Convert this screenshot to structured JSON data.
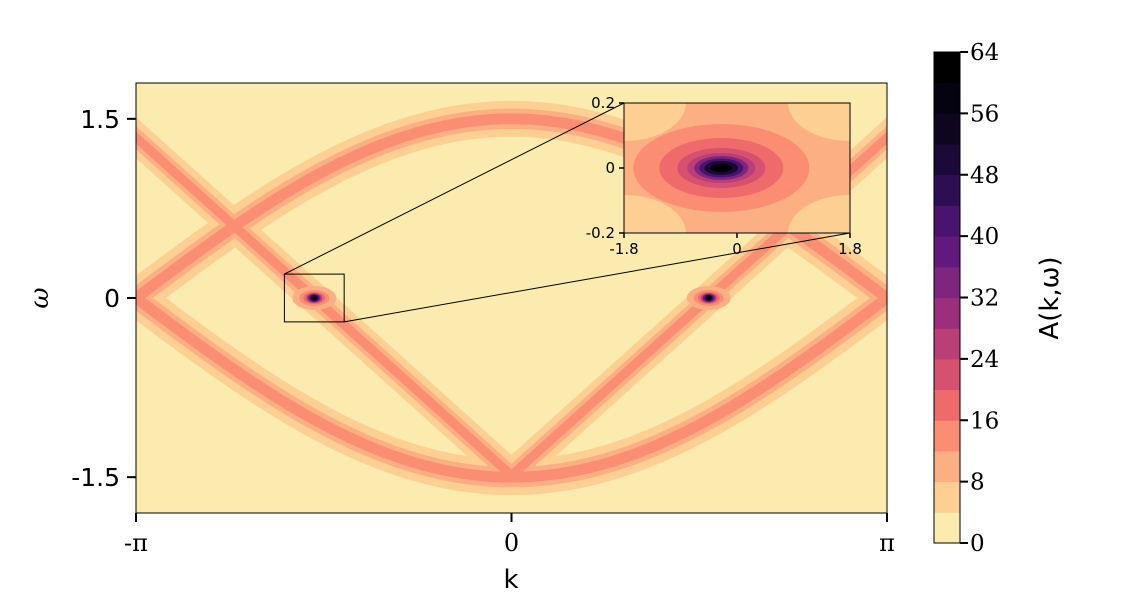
{
  "chart_data": {
    "type": "heatmap",
    "main": {
      "xlabel": "k",
      "ylabel": "ω",
      "xlim": [
        -3.14159,
        3.14159
      ],
      "ylim": [
        -1.8,
        1.8
      ],
      "xticks": [
        {
          "value": -3.14159,
          "label": "-π"
        },
        {
          "value": 0,
          "label": "0"
        },
        {
          "value": 3.14159,
          "label": "π"
        }
      ],
      "yticks": [
        {
          "value": 1.5,
          "label": "1.5"
        },
        {
          "value": 0,
          "label": "0"
        },
        {
          "value": -1.5,
          "label": "-1.5"
        }
      ],
      "dirac_points": [
        {
          "k": -1.65,
          "omega": 0
        },
        {
          "k": 1.65,
          "omega": 0
        }
      ],
      "zoom_box": {
        "k": [
          -1.9,
          -1.4
        ],
        "omega": [
          -0.2,
          0.2
        ]
      }
    },
    "inset": {
      "xlim": [
        -1.8,
        1.8
      ],
      "ylim": [
        -0.2,
        0.2
      ],
      "xticks": [
        {
          "value": -1.8,
          "label": "-1.8"
        },
        {
          "value": 0,
          "label": "0"
        },
        {
          "value": 1.8,
          "label": "1.8"
        }
      ],
      "yticks": [
        {
          "value": 0.2,
          "label": "0.2"
        },
        {
          "value": 0,
          "label": "0"
        },
        {
          "value": -0.2,
          "label": "-0.2"
        }
      ],
      "peak": {
        "x": -0.25,
        "y": 0
      }
    },
    "colorbar": {
      "label": "A(k,ω)",
      "levels": [
        0,
        4,
        8,
        12,
        16,
        20,
        24,
        28,
        32,
        36,
        40,
        44,
        48,
        52,
        56,
        60,
        64
      ],
      "ticks": [
        {
          "value": 0,
          "label": "0"
        },
        {
          "value": 8,
          "label": "8"
        },
        {
          "value": 16,
          "label": "16"
        },
        {
          "value": 24,
          "label": "24"
        },
        {
          "value": 32,
          "label": "32"
        },
        {
          "value": 40,
          "label": "40"
        },
        {
          "value": 48,
          "label": "48"
        },
        {
          "value": 56,
          "label": "56"
        },
        {
          "value": 64,
          "label": "64"
        }
      ],
      "colors": [
        "#fbebae",
        "#fdcf93",
        "#fcaf82",
        "#fa8d72",
        "#ee6a6b",
        "#d6506f",
        "#b93f77",
        "#9b2f7b",
        "#7e2580",
        "#62197e",
        "#49146e",
        "#2e0e52",
        "#1b0a38",
        "#0e061f",
        "#060311",
        "#000000"
      ]
    }
  }
}
